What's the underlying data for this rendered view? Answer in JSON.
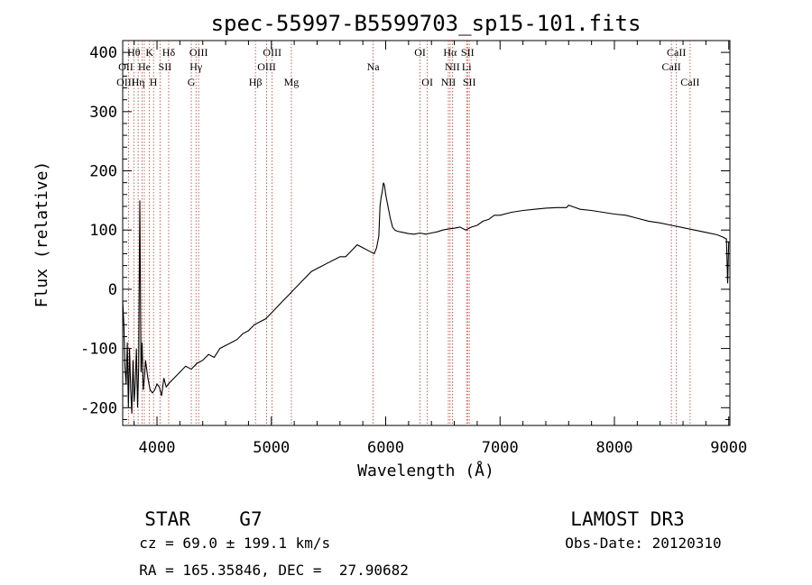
{
  "chart_data": {
    "type": "line",
    "title": "spec-55997-B5599703_sp15-101.fits",
    "xlabel": "Wavelength (Å)",
    "ylabel": "Flux (relative)",
    "xlim": [
      3700,
      9010
    ],
    "ylim": [
      -230,
      420
    ],
    "xticks": [
      4000,
      5000,
      6000,
      7000,
      8000,
      9000
    ],
    "yticks": [
      -200,
      -100,
      0,
      100,
      200,
      300,
      400
    ],
    "series": [
      {
        "name": "spectrum",
        "x": [
          3700,
          3710,
          3720,
          3730,
          3740,
          3750,
          3760,
          3770,
          3780,
          3790,
          3800,
          3810,
          3820,
          3830,
          3840,
          3850,
          3860,
          3870,
          3880,
          3890,
          3900,
          3920,
          3940,
          3960,
          3980,
          4000,
          4020,
          4040,
          4060,
          4080,
          4100,
          4150,
          4200,
          4250,
          4300,
          4350,
          4400,
          4450,
          4500,
          4550,
          4600,
          4650,
          4700,
          4750,
          4800,
          4850,
          4900,
          4950,
          5000,
          5050,
          5100,
          5150,
          5200,
          5250,
          5300,
          5350,
          5400,
          5450,
          5500,
          5550,
          5600,
          5650,
          5700,
          5750,
          5800,
          5850,
          5900,
          5920,
          5940,
          5950,
          5960,
          5970,
          5980,
          5990,
          6000,
          6020,
          6040,
          6060,
          6080,
          6100,
          6150,
          6200,
          6250,
          6300,
          6350,
          6400,
          6450,
          6500,
          6550,
          6600,
          6650,
          6700,
          6750,
          6800,
          6850,
          6900,
          6950,
          7000,
          7100,
          7200,
          7300,
          7400,
          7500,
          7580,
          7600,
          7700,
          7800,
          7900,
          8000,
          8100,
          8200,
          8300,
          8400,
          8500,
          8600,
          8700,
          8800,
          8900,
          8950,
          8980,
          8990,
          9000
        ],
        "y": [
          -20,
          -60,
          -130,
          -160,
          -90,
          -200,
          -100,
          -170,
          -210,
          -120,
          -190,
          -160,
          -100,
          -200,
          -130,
          150,
          -140,
          -90,
          -170,
          -150,
          -120,
          -150,
          -170,
          -175,
          -170,
          -160,
          -165,
          -180,
          -150,
          -165,
          -160,
          -150,
          -140,
          -130,
          -135,
          -125,
          -120,
          -110,
          -115,
          -100,
          -95,
          -90,
          -85,
          -75,
          -70,
          -60,
          -55,
          -50,
          -40,
          -30,
          -20,
          -10,
          0,
          10,
          20,
          30,
          35,
          40,
          45,
          50,
          55,
          55,
          65,
          75,
          70,
          65,
          60,
          70,
          90,
          140,
          155,
          165,
          180,
          175,
          160,
          140,
          120,
          105,
          100,
          98,
          96,
          94,
          93,
          95,
          93,
          95,
          97,
          100,
          102,
          103,
          105,
          100,
          105,
          108,
          115,
          118,
          125,
          125,
          130,
          133,
          135,
          137,
          138,
          138,
          142,
          135,
          133,
          130,
          127,
          125,
          120,
          115,
          112,
          108,
          104,
          100,
          96,
          92,
          88,
          85,
          10,
          80
        ]
      }
    ]
  },
  "line_marks": {
    "positions": [
      3750,
      3797,
      3835,
      3869,
      3889,
      3934,
      3970,
      4026,
      4102,
      4300,
      4341,
      4364,
      4861,
      4959,
      5007,
      5175,
      5890,
      6300,
      6364,
      6548,
      6563,
      6583,
      6708,
      6716,
      6731,
      8498,
      8542,
      8662
    ],
    "labels": [
      {
        "text": "Hθ",
        "x": 3797,
        "row": 1
      },
      {
        "text": "K",
        "x": 3934,
        "row": 1
      },
      {
        "text": "Hδ",
        "x": 4102,
        "row": 1
      },
      {
        "text": "OIII",
        "x": 4364,
        "row": 1
      },
      {
        "text": "OIII",
        "x": 5007,
        "row": 1
      },
      {
        "text": "OI",
        "x": 6300,
        "row": 1
      },
      {
        "text": "Hα",
        "x": 6563,
        "row": 1
      },
      {
        "text": "SII",
        "x": 6716,
        "row": 1
      },
      {
        "text": "CaII",
        "x": 8542,
        "row": 1
      },
      {
        "text": "OII",
        "x": 3727,
        "row": 2
      },
      {
        "text": "He",
        "x": 3889,
        "row": 2
      },
      {
        "text": "SII",
        "x": 4070,
        "row": 2
      },
      {
        "text": "Hγ",
        "x": 4341,
        "row": 2
      },
      {
        "text": "OIII",
        "x": 4959,
        "row": 2
      },
      {
        "text": "NII",
        "x": 6583,
        "row": 2
      },
      {
        "text": "Li",
        "x": 6708,
        "row": 2
      },
      {
        "text": "CaII",
        "x": 8498,
        "row": 2
      },
      {
        "text": "OIII",
        "x": 3727,
        "row": 3
      },
      {
        "text": "Hη",
        "x": 3835,
        "row": 3
      },
      {
        "text": "H",
        "x": 3969,
        "row": 3
      },
      {
        "text": "G",
        "x": 4300,
        "row": 3
      },
      {
        "text": "Hβ",
        "x": 4861,
        "row": 3
      },
      {
        "text": "Mg",
        "x": 5175,
        "row": 3
      },
      {
        "text": "Na",
        "x": 5890,
        "row": 2
      },
      {
        "text": "OI",
        "x": 6364,
        "row": 3
      },
      {
        "text": "NII",
        "x": 6548,
        "row": 3
      },
      {
        "text": "SII",
        "x": 6731,
        "row": 3
      },
      {
        "text": "CaII",
        "x": 8662,
        "row": 3
      }
    ]
  },
  "footer": {
    "class_label": "STAR",
    "subclass": "G7",
    "survey": "LAMOST DR3",
    "cz": "cz = 69.0 ± 199.1 km/s",
    "obs_date": "Obs-Date: 20120310",
    "coords": "RA = 165.35846, DEC =  27.90682"
  }
}
